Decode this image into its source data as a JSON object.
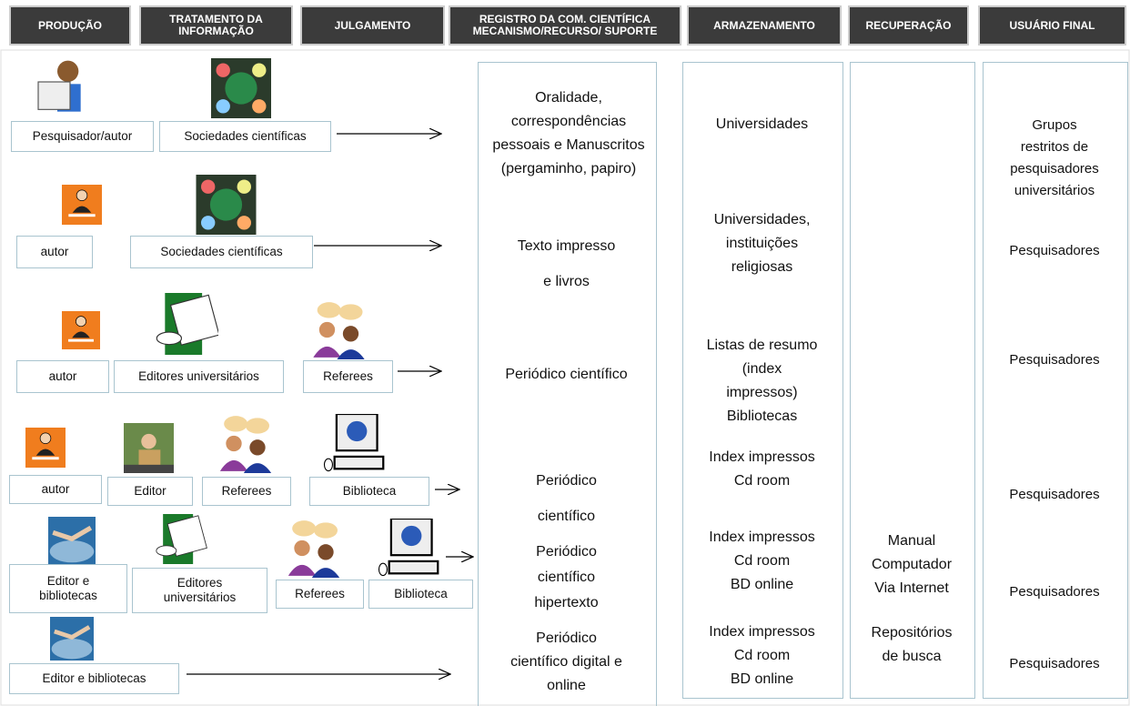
{
  "headers": [
    "PRODUÇÃO",
    "TRATAMENTO DA\nINFORMAÇÃO",
    "JULGAMENTO",
    "REGISTRO DA COM. CIENTÍFICA\nMECANISMO/RECURSO/ SUPORTE",
    "ARMAZENAMENTO",
    "RECUPERAÇÃO",
    "USUÁRIO FINAL"
  ],
  "actors": [
    [
      "Pesquisador/autor",
      "Sociedades científicas"
    ],
    [
      "autor",
      "Sociedades científicas"
    ],
    [
      "autor",
      "Editores universitários",
      "Referees"
    ],
    [
      "autor",
      "Editor",
      "Referees",
      "Biblioteca"
    ],
    [
      "Editor e\nbibliotecas",
      "Editores\nuniversitários",
      "Referees",
      "Biblioteca"
    ],
    [
      "Editor  e bibliotecas"
    ]
  ],
  "registro": [
    "Oralidade,\ncorrespondências\npessoais e Manuscritos\n(pergaminho, papiro)",
    "Texto impresso",
    "e livros",
    "Periódico científico",
    "Periódico",
    "científico",
    "Periódico\ncientífico\nhipertexto",
    "Periódico\ncientífico digital e\nonline"
  ],
  "armazenamento": [
    "Universidades",
    "Universidades,\ninstituições\nreligiosas",
    "Listas de resumo\n(index\nimpressos)\nBibliotecas",
    "Index impressos\nCd room",
    "Index impressos\nCd room\nBD online",
    "Index impressos\nCd room\nBD online"
  ],
  "recuperacao": [
    "Manual\nComputador\nVia Internet",
    "Repositórios\nde busca"
  ],
  "usuario": [
    "Grupos\nrestritos de\npesquisadores\nuniversitários",
    "Pesquisadores",
    "Pesquisadores",
    "Pesquisadores",
    "Pesquisadores",
    "Pesquisadores"
  ]
}
